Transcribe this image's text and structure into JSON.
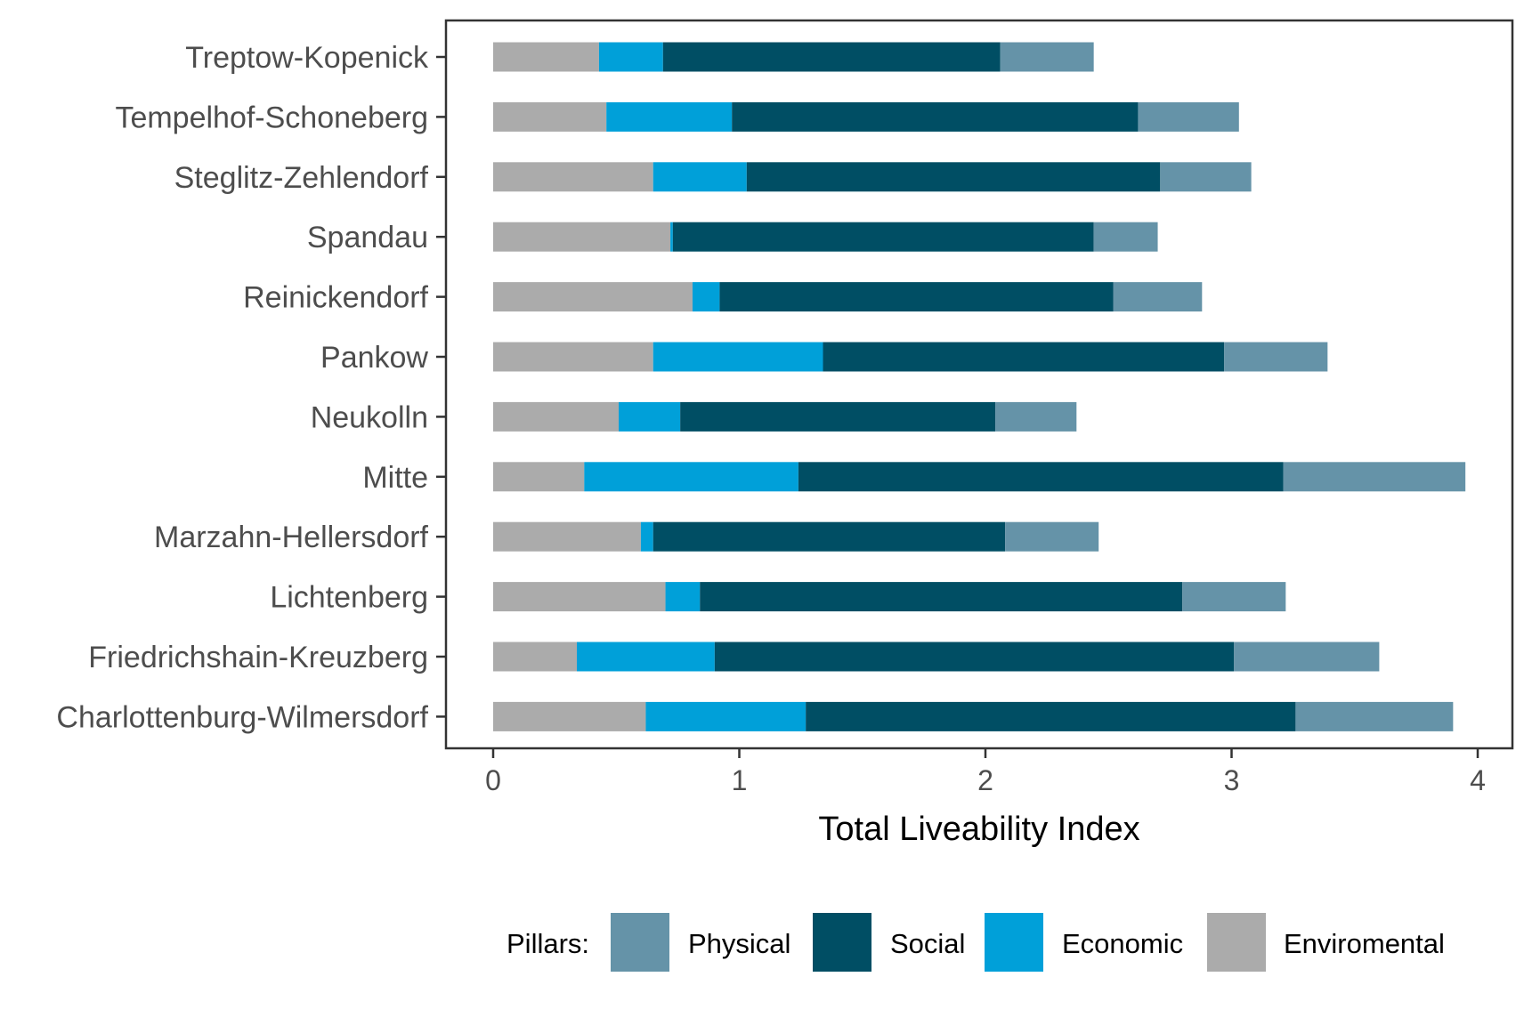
{
  "chart_data": {
    "type": "bar",
    "orientation": "horizontal",
    "stacked": true,
    "xlabel": "Total Liveability Index",
    "ylabel": "",
    "xlim": [
      0,
      4
    ],
    "x_ticks": [
      0,
      1,
      2,
      3,
      4
    ],
    "grid": false,
    "legend": {
      "title": "Pillars:",
      "position": "bottom"
    },
    "categories": [
      "Treptow-Kopenick",
      "Tempelhof-Schoneberg",
      "Steglitz-Zehlendorf",
      "Spandau",
      "Reinickendorf",
      "Pankow",
      "Neukolln",
      "Mitte",
      "Marzahn-Hellersdorf",
      "Lichtenberg",
      "Friedrichshain-Kreuzberg",
      "Charlottenburg-Wilmersdorf"
    ],
    "series": [
      {
        "name": "Enviromental",
        "color": "#ababab",
        "values": [
          0.43,
          0.46,
          0.65,
          0.72,
          0.81,
          0.65,
          0.51,
          0.37,
          0.6,
          0.7,
          0.34,
          0.62
        ]
      },
      {
        "name": "Economic",
        "color": "#00a0d9",
        "values": [
          0.26,
          0.51,
          0.38,
          0.01,
          0.11,
          0.69,
          0.25,
          0.87,
          0.05,
          0.14,
          0.56,
          0.65
        ]
      },
      {
        "name": "Social",
        "color": "#004e64",
        "values": [
          1.37,
          1.65,
          1.68,
          1.71,
          1.6,
          1.63,
          1.28,
          1.97,
          1.43,
          1.96,
          2.11,
          1.99
        ]
      },
      {
        "name": "Physical",
        "color": "#6593a8",
        "values": [
          0.38,
          0.41,
          0.37,
          0.26,
          0.36,
          0.42,
          0.33,
          0.74,
          0.38,
          0.42,
          0.59,
          0.64
        ]
      }
    ],
    "legend_order": [
      "Physical",
      "Social",
      "Economic",
      "Enviromental"
    ]
  }
}
